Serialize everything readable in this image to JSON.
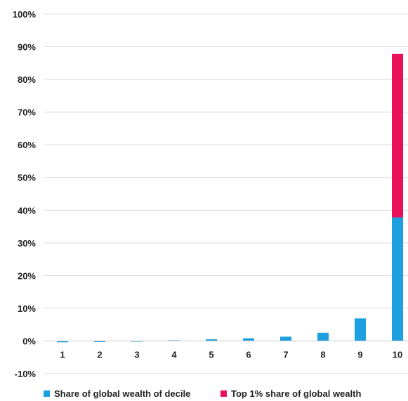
{
  "chart_data": {
    "type": "bar",
    "stacked": true,
    "categories": [
      "1",
      "2",
      "3",
      "4",
      "5",
      "6",
      "7",
      "8",
      "9",
      "10"
    ],
    "series": [
      {
        "name": "Share of global wealth of decile",
        "color": "#1ea0e0",
        "values": [
          -0.4,
          -0.1,
          0.1,
          0.2,
          0.5,
          0.8,
          1.3,
          2.5,
          6.9,
          37.8
        ]
      },
      {
        "name": "Top 1% share of global wealth",
        "color": "#e8115a",
        "values": [
          0,
          0,
          0,
          0,
          0,
          0,
          0,
          0,
          0,
          50.0
        ]
      }
    ],
    "y_ticks": [
      "100%",
      "90%",
      "80%",
      "70%",
      "60%",
      "50%",
      "40%",
      "30%",
      "20%",
      "10%",
      "0%",
      "-10%"
    ],
    "ylim": [
      -10,
      100
    ],
    "grid": true,
    "legend_position": "bottom"
  }
}
